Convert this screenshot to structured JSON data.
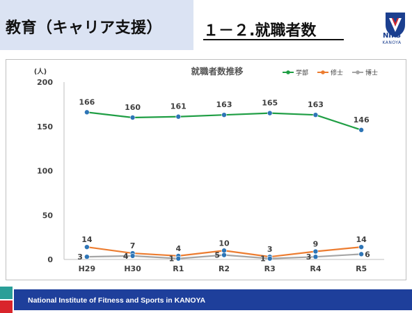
{
  "header": {
    "title": "教育（キャリア支援）",
    "subtitle": "１－２.就職者数"
  },
  "logo": {
    "emblem_text": "KANOYA",
    "caption": "NIFS",
    "sub": "KANOYA"
  },
  "footer": {
    "text": "National Institute of Fitness and Sports in KANOYA"
  },
  "colors": {
    "title_bg": "#dbe3f3",
    "footer_band": "#1e3f9b",
    "accent_red": "#d9252b",
    "accent_teal": "#2a9f98",
    "gakubu": "#1f9e44",
    "shushi": "#ec7c30",
    "hakushi": "#a5a5a5",
    "marker": "#2e75b6"
  },
  "chart_data": {
    "type": "line",
    "title": "就職者数推移",
    "ylabel": "(人)",
    "xlabel": "",
    "ylim": [
      0,
      200
    ],
    "yticks": [
      0,
      50,
      100,
      150,
      200
    ],
    "grid": false,
    "legend": "top-right",
    "categories": [
      "H29",
      "H30",
      "R1",
      "R2",
      "R3",
      "R4",
      "R5"
    ],
    "series": [
      {
        "name": "学部",
        "values": [
          166,
          160,
          161,
          163,
          165,
          163,
          146
        ],
        "color": "#1f9e44"
      },
      {
        "name": "修士",
        "values": [
          14,
          7,
          4,
          10,
          3,
          9,
          14
        ],
        "color": "#ec7c30"
      },
      {
        "name": "博士",
        "values": [
          3,
          4,
          1,
          5,
          1,
          3,
          6
        ],
        "color": "#a5a5a5"
      }
    ]
  }
}
